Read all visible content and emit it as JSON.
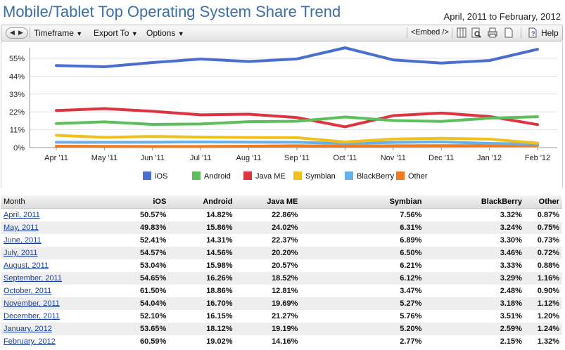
{
  "title": "Mobile/Tablet Top Operating System Share Trend",
  "date_range": "April, 2011 to February, 2012",
  "toolbar": {
    "timeframe": "Timeframe",
    "export": "Export To",
    "options": "Options",
    "embed": "<Embed />",
    "help": "Help"
  },
  "chart_data": {
    "type": "line",
    "categories": [
      "Apr '11",
      "May '11",
      "Jun '11",
      "Jul '11",
      "Aug '11",
      "Sep '11",
      "Oct '11",
      "Nov '11",
      "Dec '11",
      "Jan '12",
      "Feb '12"
    ],
    "y_ticks": [
      "0%",
      "11%",
      "22%",
      "33%",
      "44%",
      "55%"
    ],
    "ylim": [
      0,
      65
    ],
    "legend_position": "bottom",
    "series": [
      {
        "name": "iOS",
        "color": "#4a6fd0",
        "values": [
          50.57,
          49.83,
          52.41,
          54.57,
          53.04,
          54.65,
          61.5,
          54.04,
          52.1,
          53.65,
          60.59
        ]
      },
      {
        "name": "Android",
        "color": "#5cbf5c",
        "values": [
          14.82,
          15.86,
          14.31,
          14.56,
          15.98,
          16.26,
          18.86,
          16.7,
          16.15,
          18.12,
          19.02
        ]
      },
      {
        "name": "Java ME",
        "color": "#e03342",
        "values": [
          22.86,
          24.02,
          22.37,
          20.2,
          20.57,
          18.52,
          12.81,
          19.69,
          21.27,
          19.19,
          14.16
        ]
      },
      {
        "name": "Symbian",
        "color": "#f2c01a",
        "values": [
          7.56,
          6.31,
          6.89,
          6.5,
          6.21,
          6.12,
          3.47,
          5.27,
          5.76,
          5.2,
          2.77
        ]
      },
      {
        "name": "BlackBerry",
        "color": "#6ab0e8",
        "values": [
          3.32,
          3.24,
          3.3,
          3.46,
          3.33,
          3.29,
          2.48,
          3.18,
          3.51,
          2.59,
          2.15
        ]
      },
      {
        "name": "Other",
        "color": "#f07b1f",
        "values": [
          0.87,
          0.75,
          0.73,
          0.72,
          0.88,
          1.16,
          0.9,
          1.12,
          1.2,
          1.24,
          1.32
        ]
      }
    ]
  },
  "table": {
    "headers": [
      "Month",
      "iOS",
      "Android",
      "Java ME",
      "Symbian",
      "BlackBerry",
      "Other"
    ],
    "rows": [
      [
        "April, 2011",
        "50.57%",
        "14.82%",
        "22.86%",
        "7.56%",
        "3.32%",
        "0.87%"
      ],
      [
        "May, 2011",
        "49.83%",
        "15.86%",
        "24.02%",
        "6.31%",
        "3.24%",
        "0.75%"
      ],
      [
        "June, 2011",
        "52.41%",
        "14.31%",
        "22.37%",
        "6.89%",
        "3.30%",
        "0.73%"
      ],
      [
        "July, 2011",
        "54.57%",
        "14.56%",
        "20.20%",
        "6.50%",
        "3.46%",
        "0.72%"
      ],
      [
        "August, 2011",
        "53.04%",
        "15.98%",
        "20.57%",
        "6.21%",
        "3.33%",
        "0.88%"
      ],
      [
        "September, 2011",
        "54.65%",
        "16.26%",
        "18.52%",
        "6.12%",
        "3.29%",
        "1.16%"
      ],
      [
        "October, 2011",
        "61.50%",
        "18.86%",
        "12.81%",
        "3.47%",
        "2.48%",
        "0.90%"
      ],
      [
        "November, 2011",
        "54.04%",
        "16.70%",
        "19.69%",
        "5.27%",
        "3.18%",
        "1.12%"
      ],
      [
        "December, 2011",
        "52.10%",
        "16.15%",
        "21.27%",
        "5.76%",
        "3.51%",
        "1.20%"
      ],
      [
        "January, 2012",
        "53.65%",
        "18.12%",
        "19.19%",
        "5.20%",
        "2.59%",
        "1.24%"
      ],
      [
        "February, 2012",
        "60.59%",
        "19.02%",
        "14.16%",
        "2.77%",
        "2.15%",
        "1.32%"
      ]
    ]
  }
}
